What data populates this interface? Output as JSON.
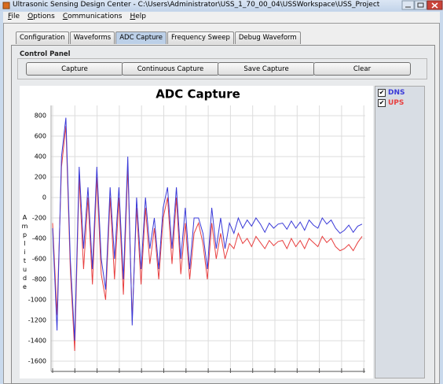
{
  "window": {
    "title": "Ultrasonic Sensing Design Center - C:\\Users\\Administrator\\USS_1_70_00_04\\USSWorkspace\\USS_Project",
    "menu": [
      "File",
      "Options",
      "Communications",
      "Help"
    ],
    "tabs": [
      "Configuration",
      "Waveforms",
      "ADC Capture",
      "Frequency Sweep",
      "Debug Waveform"
    ],
    "active_tab": 2
  },
  "control_panel": {
    "title": "Control Panel",
    "buttons": [
      "Capture",
      "Continuous Capture",
      "Save Capture",
      "Clear"
    ]
  },
  "chart_data": {
    "type": "line",
    "title": "ADC Capture",
    "y_label": "Amplitude",
    "ylim": [
      -1700,
      900
    ],
    "yticks": [
      800,
      600,
      400,
      200,
      0,
      -200,
      -400,
      -600,
      -800,
      -1000,
      -1200,
      -1400,
      -1600
    ],
    "grid": true,
    "series": [
      {
        "name": "DNS",
        "color": "#3a3ad8",
        "values": [
          -300,
          -1300,
          400,
          780,
          -600,
          -1400,
          300,
          -500,
          100,
          -700,
          300,
          -600,
          -900,
          100,
          -600,
          100,
          -800,
          400,
          -1250,
          0,
          -700,
          0,
          -500,
          -200,
          -700,
          -100,
          100,
          -500,
          100,
          -600,
          -100,
          -700,
          -200,
          -200,
          -350,
          -700,
          -100,
          -500,
          -200,
          -500,
          -250,
          -350,
          -200,
          -300,
          -220,
          -280,
          -200,
          -260,
          -340,
          -250,
          -300,
          -260,
          -250,
          -310,
          -230,
          -300,
          -240,
          -320,
          -220,
          -270,
          -300,
          -200,
          -260,
          -220,
          -300,
          -350,
          -320,
          -270,
          -340,
          -280,
          -260
        ]
      },
      {
        "name": "UPS",
        "color": "#e84040",
        "values": [
          -250,
          -1150,
          300,
          700,
          -700,
          -1500,
          200,
          -700,
          0,
          -850,
          200,
          -750,
          -1000,
          0,
          -800,
          0,
          -950,
          300,
          -1200,
          -100,
          -850,
          -100,
          -650,
          -300,
          -800,
          -200,
          0,
          -650,
          0,
          -750,
          -250,
          -800,
          -350,
          -250,
          -450,
          -800,
          -250,
          -600,
          -350,
          -600,
          -450,
          -500,
          -350,
          -450,
          -400,
          -480,
          -380,
          -440,
          -500,
          -420,
          -470,
          -430,
          -420,
          -500,
          -400,
          -480,
          -420,
          -500,
          -400,
          -440,
          -480,
          -380,
          -440,
          -400,
          -480,
          -520,
          -500,
          -460,
          -520,
          -440,
          -380
        ]
      }
    ],
    "checked": true
  }
}
